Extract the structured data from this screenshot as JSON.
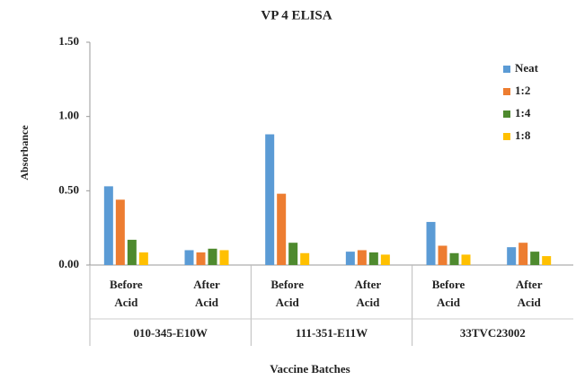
{
  "chart_data": {
    "type": "bar",
    "title": "VP 4 ELISA",
    "y_label": "Absorbance",
    "x_label": "Vaccine Batches",
    "categories": [
      [
        "Before",
        "Acid"
      ],
      [
        "After",
        "Acid"
      ],
      [
        "Before",
        "Acid"
      ],
      [
        "After",
        "Acid"
      ],
      [
        "Before",
        "Acid"
      ],
      [
        "After",
        "Acid"
      ]
    ],
    "groups": [
      "010-345-E10W",
      "111-351-E11W",
      "33TVC23002"
    ],
    "series": [
      {
        "name": "Neat",
        "color": "#5b9bd5",
        "values": [
          0.53,
          0.1,
          0.88,
          0.09,
          0.29,
          0.12
        ]
      },
      {
        "name": "1:2",
        "color": "#ed7d31",
        "values": [
          0.44,
          0.085,
          0.48,
          0.1,
          0.13,
          0.15
        ]
      },
      {
        "name": "1:4",
        "color": "#4e8a2e",
        "values": [
          0.17,
          0.11,
          0.15,
          0.085,
          0.08,
          0.09
        ]
      },
      {
        "name": "1:8",
        "color": "#ffc000",
        "values": [
          0.085,
          0.1,
          0.08,
          0.07,
          0.07,
          0.06
        ]
      }
    ],
    "ylim": [
      0,
      1.5
    ],
    "yticks": [
      {
        "value": 0,
        "label": "0.00"
      },
      {
        "value": 0.5,
        "label": "0.50"
      },
      {
        "value": 1,
        "label": "1.00"
      },
      {
        "value": 1.5,
        "label": "1.50"
      }
    ],
    "legend": "top-right"
  }
}
